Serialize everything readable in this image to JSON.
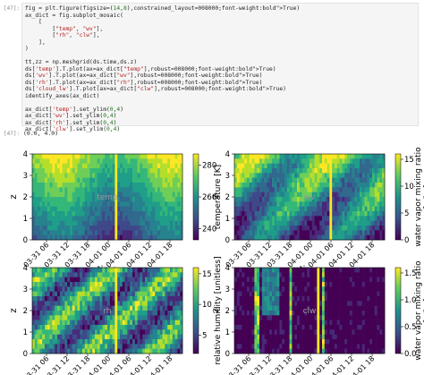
{
  "notebook": {
    "input_prompt": "[47]:",
    "output_prompt": "[47]:",
    "code_lines": [
      "fig = plt.figure(figsize=(14,8),constrained_layout=True)",
      "ax_dict = fig.subplot_mosaic(",
      "    [",
      "        [\"temp\", \"wv\"],",
      "        [\"rh\", \"clw\"],",
      "    ],",
      ")",
      "",
      "tt,zz = np.meshgrid(ds.time,ds.z)",
      "ds['temp'].T.plot(ax=ax_dict[\"temp\"],robust=True)",
      "ds['wv'].T.plot(ax=ax_dict[\"wv\"],robust=True)",
      "ds['rh'].T.plot(ax=ax_dict[\"rh\"],robust=True)",
      "ds['cloud_lw'].T.plot(ax=ax_dict[\"clw\"],robust=True)",
      "identify_axes(ax_dict)",
      "",
      "ax_dict['temp'].set_ylim(0,4)",
      "ax_dict['wv'].set_ylim(0,4)",
      "ax_dict['rh'].set_ylim(0,4)",
      "ax_dict['clw'].set_ylim(0,4)"
    ],
    "output_text": "(0.0, 4.0)"
  },
  "chart_data": [
    {
      "type": "heatmap",
      "panel_label": "temp",
      "xlabel": "time",
      "ylabel": "z",
      "xtick_labels": [
        "03-31 06",
        "03-31 12",
        "03-31 18",
        "04-01 00",
        "04-01 06",
        "04-01 12",
        "04-01 18"
      ],
      "ytick_labels": [
        "0",
        "1",
        "2",
        "3",
        "4"
      ],
      "ylim": [
        0,
        4
      ],
      "colorbar": {
        "label": "temperature [K]",
        "ticks": [
          "240",
          "260",
          "280"
        ],
        "range": [
          233,
          287
        ]
      }
    },
    {
      "type": "heatmap",
      "panel_label": "wv",
      "xlabel": "time",
      "ylabel": "z",
      "xtick_labels": [
        "03-31 06",
        "03-31 12",
        "03-31 18",
        "04-01 00",
        "04-01 06",
        "04-01 12",
        "04-01 18"
      ],
      "ytick_labels": [
        "0",
        "1",
        "2",
        "3",
        "4"
      ],
      "ylim": [
        0,
        4
      ],
      "colorbar": {
        "label": "water vapor mixing ratio\n[g/kg]",
        "ticks": [
          "0",
          "5",
          "10",
          "15"
        ],
        "range": [
          0,
          16
        ]
      }
    },
    {
      "type": "heatmap",
      "panel_label": "rh",
      "xlabel": "time",
      "ylabel": "z",
      "xtick_labels": [
        "03-31 06",
        "03-31 12",
        "03-31 18",
        "04-01 00",
        "04-01 06",
        "04-01 12",
        "04-01 18"
      ],
      "ytick_labels": [
        "0",
        "1",
        "2",
        "3",
        "4"
      ],
      "ylim": [
        0,
        4
      ],
      "colorbar": {
        "label": "relative humidity [unitless]",
        "ticks": [
          "5",
          "10",
          "15"
        ],
        "range": [
          2,
          16
        ]
      }
    },
    {
      "type": "heatmap",
      "panel_label": "clw",
      "xlabel": "time",
      "ylabel": "z",
      "xtick_labels": [
        "03-31 06",
        "03-31 12",
        "03-31 18",
        "04-01 00",
        "04-01 06",
        "04-01 12",
        "04-01 18"
      ],
      "ytick_labels": [
        "0",
        "1",
        "2",
        "3",
        "4"
      ],
      "ylim": [
        0,
        4
      ],
      "colorbar": {
        "label": "water vapor mixing ratio\n[g/kg]",
        "ticks": [
          "0.0",
          "0.5",
          "1.0",
          "1.5"
        ],
        "range": [
          0,
          1.6
        ]
      }
    }
  ]
}
